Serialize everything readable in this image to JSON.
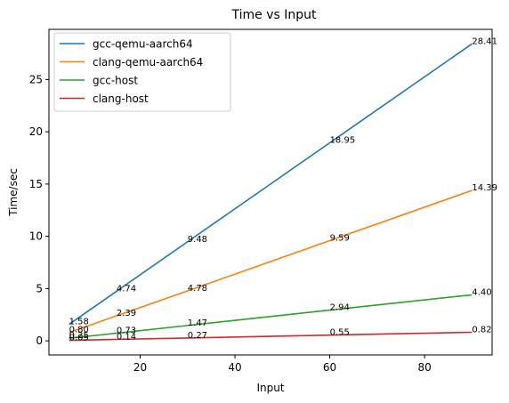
{
  "chart_data": {
    "type": "line",
    "title": "Time vs Input",
    "xlabel": "Input",
    "ylabel": "Time/sec",
    "xlim": [
      0.75,
      94.25
    ],
    "ylim": [
      -1.35,
      29.8
    ],
    "xticks": [
      20,
      40,
      60,
      80
    ],
    "yticks": [
      0,
      5,
      10,
      15,
      20,
      25
    ],
    "x": [
      5,
      15,
      30,
      60,
      90
    ],
    "grid": false,
    "legend_position": "upper left",
    "series": [
      {
        "name": "gcc-qemu-aarch64",
        "color": "#1f77b4",
        "values": [
          1.58,
          4.74,
          9.48,
          18.95,
          28.41
        ]
      },
      {
        "name": "clang-qemu-aarch64",
        "color": "#ff7f0e",
        "values": [
          0.8,
          2.39,
          4.78,
          9.59,
          14.39
        ]
      },
      {
        "name": "gcc-host",
        "color": "#2ca02c",
        "values": [
          0.25,
          0.73,
          1.47,
          2.94,
          4.4
        ]
      },
      {
        "name": "clang-host",
        "color": "#d62728",
        "values": [
          0.05,
          0.14,
          0.27,
          0.55,
          0.82
        ]
      }
    ]
  }
}
